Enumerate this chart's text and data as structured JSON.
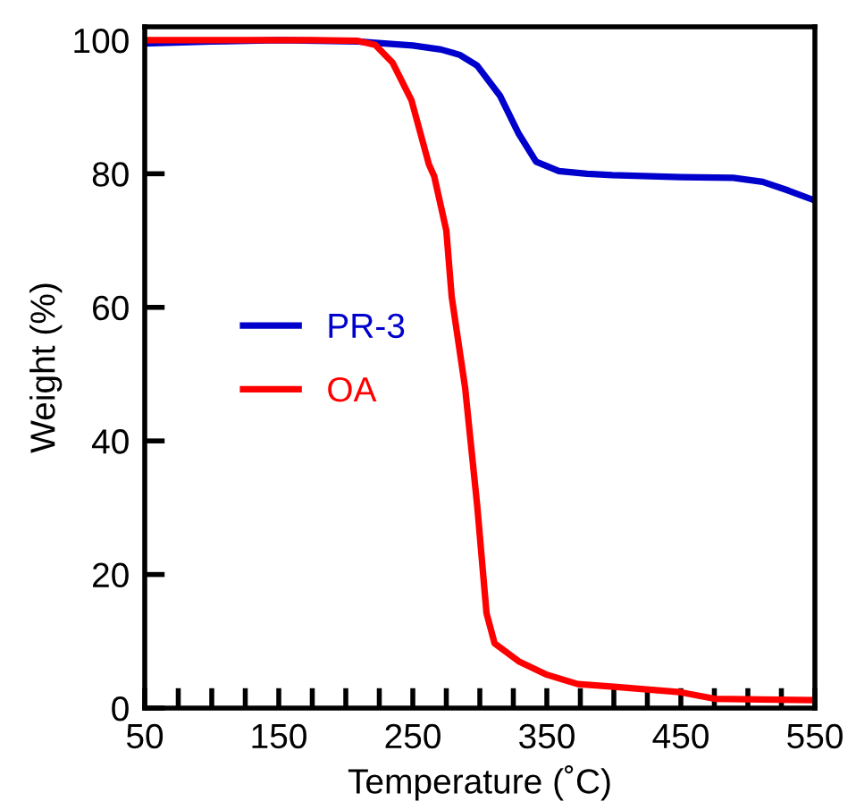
{
  "chart_data": {
    "type": "line",
    "xlabel": "Temperature (˚C)",
    "ylabel": "Weight (%)",
    "xlim": [
      50,
      550
    ],
    "ylim": [
      0,
      102
    ],
    "xticks": [
      50,
      {
        "value": 75,
        "label": null
      },
      {
        "value": 100,
        "label": null
      },
      {
        "value": 125,
        "label": null
      },
      150,
      {
        "value": 175,
        "label": null
      },
      {
        "value": 200,
        "label": null
      },
      {
        "value": 225,
        "label": null
      },
      250,
      {
        "value": 275,
        "label": null
      },
      {
        "value": 300,
        "label": null
      },
      {
        "value": 325,
        "label": null
      },
      350,
      {
        "value": 375,
        "label": null
      },
      {
        "value": 400,
        "label": null
      },
      {
        "value": 425,
        "label": null
      },
      450,
      {
        "value": 475,
        "label": null
      },
      {
        "value": 500,
        "label": null
      },
      {
        "value": 525,
        "label": null
      },
      550
    ],
    "yticks": [
      0,
      20,
      40,
      60,
      80,
      100
    ],
    "grid": false,
    "legend": "left",
    "marker": "none",
    "line_style": "solid",
    "series": [
      {
        "name": "PR-3",
        "color": "#0000cc",
        "x": [
          50,
          100,
          150,
          209,
          222,
          250,
          271,
          285,
          298,
          315,
          329,
          342,
          359,
          380,
          399,
          450,
          489,
          511,
          530,
          550
        ],
        "values": [
          99.5,
          99.8,
          100,
          99.8,
          99.6,
          99.2,
          98.6,
          97.8,
          96.2,
          91.7,
          86,
          81.8,
          80.4,
          80,
          79.8,
          79.5,
          79.4,
          78.8,
          77.5,
          76
        ]
      },
      {
        "name": "OA",
        "color": "#ff0000",
        "x": [
          50,
          100,
          150,
          175,
          209,
          222,
          235,
          249,
          262,
          266,
          275,
          279,
          289,
          298,
          305,
          311,
          329,
          350,
          373,
          400,
          449,
          475,
          510,
          550
        ],
        "values": [
          100,
          100,
          100,
          100,
          99.9,
          99.3,
          96.6,
          91,
          81.4,
          79.6,
          71.5,
          61.6,
          48,
          30.4,
          14.2,
          9.7,
          7,
          5,
          3.6,
          3.2,
          2.4,
          1.4,
          1.3,
          1.2
        ]
      }
    ]
  }
}
